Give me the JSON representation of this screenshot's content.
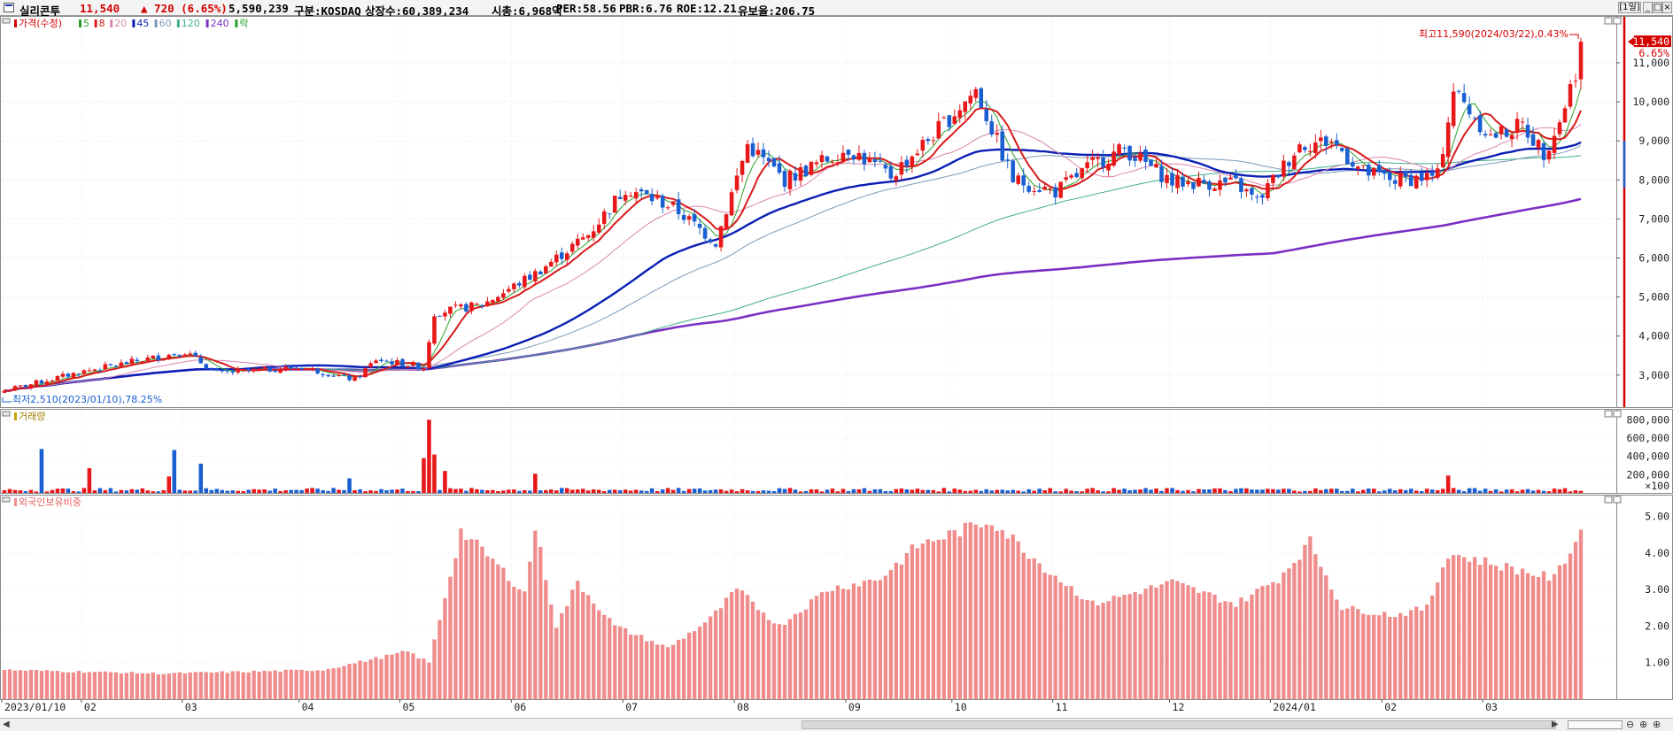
{
  "header": {
    "name": "실리콘투",
    "price": "11,540",
    "change": "▲ 720 (6.65%)",
    "volume": "5,590,239",
    "market": "구분:KOSDAQ",
    "shares": "상장수:60,389,234",
    "cap": "시총:6,968억",
    "per": "PER:58.56",
    "pbr": "PBR:6.76",
    "roe": "ROE:12.21",
    "float": "유보율:206.75",
    "period_button": "[1일]"
  },
  "chart_data": [
    {
      "type": "candlestick",
      "panel": "price",
      "legend": [
        "가격(수정)",
        "5",
        "8",
        "20",
        "45",
        "60",
        "120",
        "240",
        "락"
      ],
      "colors": {
        "up": "#e8171a",
        "down": "#1a5fd1",
        "ma5": "#2aa02a",
        "ma8": "#d81b1b",
        "ma20": "#d985b0",
        "ma45": "#0a1fb5",
        "ma60": "#7c9ab8",
        "ma120": "#3fae8c",
        "ma240": "#7a2fc2"
      },
      "yticks": [
        3000,
        4000,
        5000,
        6000,
        7000,
        8000,
        9000,
        10000,
        11000
      ],
      "ytick_labels": [
        "3,000",
        "4,000",
        "5,000",
        "6,000",
        "7,000",
        "8,000",
        "9,000",
        "10,000",
        "11,000"
      ],
      "ylim": [
        2180,
        12200
      ],
      "x_labels": [
        "2023/01/10",
        "02",
        "03",
        "04",
        "05",
        "06",
        "07",
        "08",
        "09",
        "10",
        "11",
        "12",
        "2024/01",
        "02",
        "03"
      ],
      "x_label_index": [
        0,
        15,
        34,
        56,
        75,
        96,
        117,
        138,
        159,
        179,
        198,
        220,
        239,
        260,
        279
      ],
      "closes_monthly": [
        {
          "idx": 0,
          "close": 2600
        },
        {
          "idx": 15,
          "close": 3100
        },
        {
          "idx": 34,
          "close": 3600
        },
        {
          "idx": 40,
          "close": 3050
        },
        {
          "idx": 56,
          "close": 3200
        },
        {
          "idx": 66,
          "close": 2880
        },
        {
          "idx": 70,
          "close": 3400
        },
        {
          "idx": 79,
          "close": 3200
        },
        {
          "idx": 81,
          "close": 4600
        },
        {
          "idx": 90,
          "close": 4800
        },
        {
          "idx": 100,
          "close": 5600
        },
        {
          "idx": 110,
          "close": 6600
        },
        {
          "idx": 117,
          "close": 7800
        },
        {
          "idx": 126,
          "close": 7300
        },
        {
          "idx": 134,
          "close": 6400
        },
        {
          "idx": 140,
          "close": 8900
        },
        {
          "idx": 147,
          "close": 8000
        },
        {
          "idx": 159,
          "close": 8800
        },
        {
          "idx": 167,
          "close": 8100
        },
        {
          "idx": 176,
          "close": 9300
        },
        {
          "idx": 183,
          "close": 10300
        },
        {
          "idx": 190,
          "close": 8000
        },
        {
          "idx": 198,
          "close": 7700
        },
        {
          "idx": 205,
          "close": 8400
        },
        {
          "idx": 211,
          "close": 8800
        },
        {
          "idx": 220,
          "close": 7950
        },
        {
          "idx": 232,
          "close": 7900
        },
        {
          "idx": 236,
          "close": 7450
        },
        {
          "idx": 244,
          "close": 8900
        },
        {
          "idx": 250,
          "close": 9000
        },
        {
          "idx": 256,
          "close": 8200
        },
        {
          "idx": 262,
          "close": 8000
        },
        {
          "idx": 270,
          "close": 8100
        },
        {
          "idx": 273,
          "close": 10300
        },
        {
          "idx": 280,
          "close": 9100
        },
        {
          "idx": 286,
          "close": 9400
        },
        {
          "idx": 290,
          "close": 8700
        },
        {
          "idx": 293,
          "close": 9500
        },
        {
          "idx": 296,
          "close": 10800
        },
        {
          "idx": 297,
          "close": 11540
        }
      ],
      "bars": 298,
      "last_price_label": "11,540",
      "last_pct_label": "6.65%",
      "high_annotation": "최고11,590(2024/03/22),0.43%",
      "low_annotation": "최저2,510(2023/01/10),78.25%"
    },
    {
      "type": "bar",
      "panel": "volume",
      "legend": [
        "거래량"
      ],
      "yticks": [
        200000,
        400000,
        600000,
        800000
      ],
      "ytick_labels": [
        "200,000",
        "400,000",
        "600,000",
        "800,000"
      ],
      "unit_label": "×100",
      "ylim": [
        0,
        880000
      ],
      "spikes": [
        {
          "idx": 7,
          "value": 480000
        },
        {
          "idx": 16,
          "value": 270000
        },
        {
          "idx": 31,
          "value": 180000
        },
        {
          "idx": 32,
          "value": 470000
        },
        {
          "idx": 37,
          "value": 320000
        },
        {
          "idx": 65,
          "value": 160000
        },
        {
          "idx": 79,
          "value": 380000
        },
        {
          "idx": 80,
          "value": 800000
        },
        {
          "idx": 81,
          "value": 420000
        },
        {
          "idx": 83,
          "value": 240000
        },
        {
          "idx": 100,
          "value": 210000
        },
        {
          "idx": 272,
          "value": 190000
        }
      ]
    },
    {
      "type": "bar",
      "panel": "foreign_holding",
      "legend": [
        "외국인보유비중"
      ],
      "yticks": [
        1,
        2,
        3,
        4,
        5
      ],
      "ytick_labels": [
        "1.00",
        "2.00",
        "3.00",
        "4.00",
        "5.00"
      ],
      "ylim": [
        0,
        5.4
      ],
      "points": [
        {
          "idx": 0,
          "value": 0.8
        },
        {
          "idx": 30,
          "value": 0.7
        },
        {
          "idx": 60,
          "value": 0.8
        },
        {
          "idx": 76,
          "value": 1.3
        },
        {
          "idx": 80,
          "value": 1.0
        },
        {
          "idx": 83,
          "value": 2.8
        },
        {
          "idx": 86,
          "value": 4.6
        },
        {
          "idx": 92,
          "value": 3.8
        },
        {
          "idx": 98,
          "value": 2.9
        },
        {
          "idx": 100,
          "value": 4.7
        },
        {
          "idx": 104,
          "value": 2.0
        },
        {
          "idx": 108,
          "value": 3.2
        },
        {
          "idx": 115,
          "value": 2.0
        },
        {
          "idx": 125,
          "value": 1.4
        },
        {
          "idx": 133,
          "value": 2.2
        },
        {
          "idx": 138,
          "value": 3.0
        },
        {
          "idx": 146,
          "value": 2.0
        },
        {
          "idx": 155,
          "value": 3.0
        },
        {
          "idx": 165,
          "value": 3.3
        },
        {
          "idx": 172,
          "value": 4.2
        },
        {
          "idx": 186,
          "value": 4.9
        },
        {
          "idx": 196,
          "value": 3.6
        },
        {
          "idx": 205,
          "value": 2.6
        },
        {
          "idx": 220,
          "value": 3.2
        },
        {
          "idx": 232,
          "value": 2.6
        },
        {
          "idx": 240,
          "value": 3.3
        },
        {
          "idx": 246,
          "value": 4.3
        },
        {
          "idx": 252,
          "value": 2.5
        },
        {
          "idx": 262,
          "value": 2.3
        },
        {
          "idx": 268,
          "value": 2.5
        },
        {
          "idx": 272,
          "value": 4.0
        },
        {
          "idx": 292,
          "value": 3.3
        },
        {
          "idx": 297,
          "value": 4.6
        }
      ]
    }
  ]
}
